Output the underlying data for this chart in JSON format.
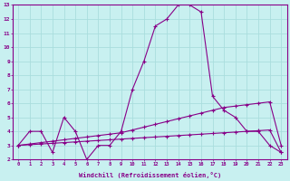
{
  "xlabel": "Windchill (Refroidissement éolien,°C)",
  "bg_color": "#c8f0f0",
  "line_color": "#880088",
  "grid_color": "#aadddd",
  "x_hours": [
    0,
    1,
    2,
    3,
    4,
    5,
    6,
    7,
    8,
    9,
    10,
    11,
    12,
    13,
    14,
    15,
    16,
    17,
    18,
    19,
    20,
    21,
    22,
    23
  ],
  "series1": [
    3,
    4,
    4,
    2.5,
    5,
    4,
    2,
    3,
    3,
    4,
    7,
    9,
    11.5,
    12,
    13,
    13,
    12.5,
    6.5,
    5.5,
    5,
    4,
    4,
    3,
    2.5
  ],
  "series2": [
    3.0,
    3.1,
    3.2,
    3.3,
    3.4,
    3.5,
    3.6,
    3.7,
    3.8,
    3.9,
    4.1,
    4.3,
    4.5,
    4.7,
    4.9,
    5.1,
    5.3,
    5.5,
    5.7,
    5.8,
    5.9,
    6.0,
    6.1,
    3.0
  ],
  "series3": [
    3.0,
    3.05,
    3.1,
    3.15,
    3.2,
    3.25,
    3.3,
    3.35,
    3.4,
    3.45,
    3.5,
    3.55,
    3.6,
    3.65,
    3.7,
    3.75,
    3.8,
    3.85,
    3.9,
    3.95,
    4.0,
    4.05,
    4.1,
    2.5
  ],
  "ylim": [
    2,
    13
  ],
  "xlim": [
    -0.5,
    23.5
  ],
  "yticks": [
    2,
    3,
    4,
    5,
    6,
    7,
    8,
    9,
    10,
    11,
    12,
    13
  ]
}
